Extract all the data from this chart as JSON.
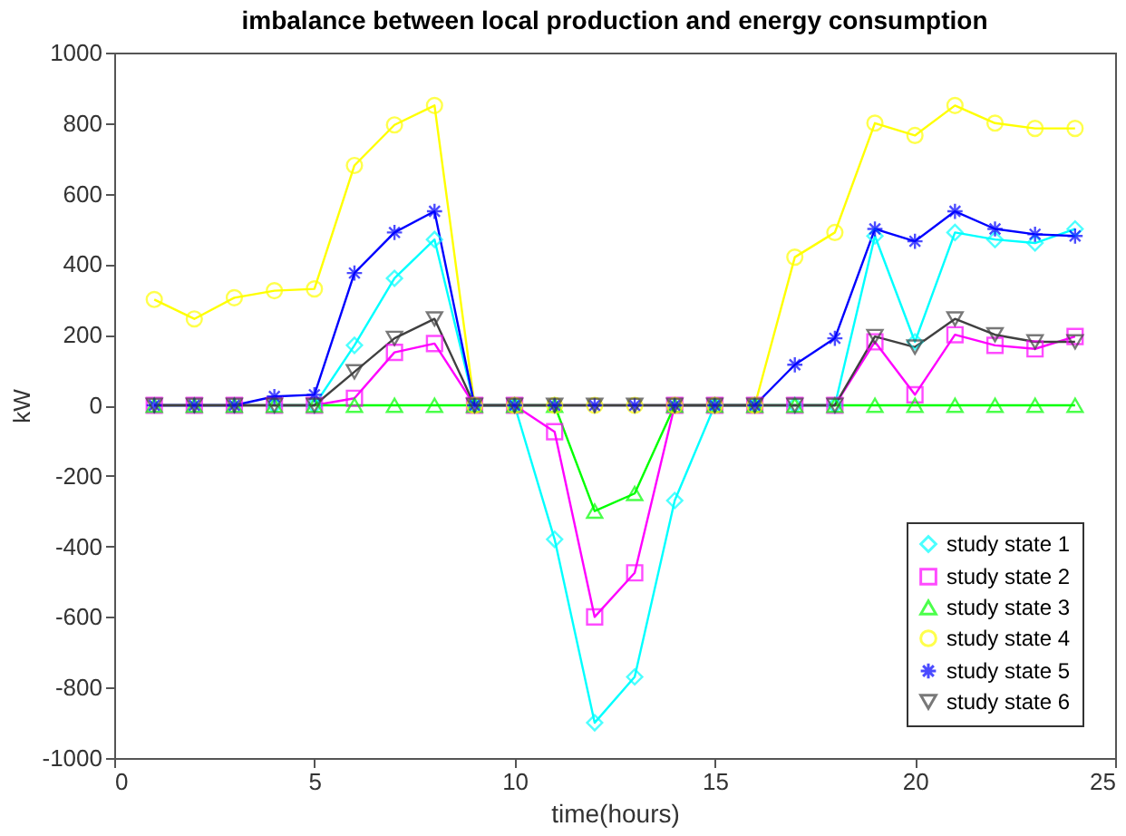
{
  "chart_data": {
    "type": "line",
    "title": "imbalance between local production and energy consumption",
    "xlabel": "time(hours)",
    "ylabel": "kW",
    "x": [
      1,
      2,
      3,
      4,
      5,
      6,
      7,
      8,
      9,
      10,
      11,
      12,
      13,
      14,
      15,
      16,
      17,
      18,
      19,
      20,
      21,
      22,
      23,
      24
    ],
    "xlim": [
      0,
      25
    ],
    "xticks": [
      0,
      5,
      10,
      15,
      20,
      25
    ],
    "ylim": [
      -1000,
      1000
    ],
    "yticks": [
      -1000,
      -800,
      -600,
      -400,
      -200,
      0,
      200,
      400,
      600,
      800,
      1000
    ],
    "grid": false,
    "legend": "bottom right",
    "line_style": "solid",
    "series": [
      {
        "name": "study state 1",
        "color": "#00ffff",
        "marker": "diamond",
        "values": [
          null,
          null,
          null,
          0,
          0,
          170,
          360,
          470,
          0,
          0,
          -380,
          -900,
          -770,
          -270,
          0,
          0,
          0,
          0,
          480,
          180,
          490,
          470,
          460,
          500
        ]
      },
      {
        "name": "study state 2",
        "color": "#ff00ff",
        "marker": "square",
        "values": [
          0,
          0,
          0,
          0,
          0,
          20,
          150,
          175,
          0,
          0,
          -75,
          -600,
          -475,
          0,
          0,
          0,
          0,
          0,
          180,
          30,
          200,
          170,
          160,
          195
        ]
      },
      {
        "name": "study state 3",
        "color": "#00ff00",
        "marker": "triangle",
        "values": [
          0,
          0,
          0,
          0,
          0,
          0,
          0,
          0,
          0,
          0,
          0,
          -300,
          -250,
          0,
          0,
          0,
          0,
          0,
          0,
          0,
          0,
          0,
          0,
          0
        ]
      },
      {
        "name": "study state 4",
        "color": "#ffff00",
        "marker": "circle",
        "values": [
          300,
          245,
          305,
          325,
          330,
          680,
          795,
          850,
          0,
          0,
          0,
          0,
          0,
          0,
          0,
          0,
          420,
          490,
          800,
          765,
          850,
          800,
          785,
          785
        ]
      },
      {
        "name": "study state 5",
        "color": "#0000ff",
        "marker": "cross",
        "values": [
          0,
          0,
          0,
          25,
          30,
          375,
          490,
          550,
          0,
          0,
          0,
          0,
          0,
          0,
          0,
          0,
          115,
          190,
          500,
          465,
          550,
          500,
          485,
          480
        ]
      },
      {
        "name": "study state 6",
        "color": "#404040",
        "marker": "triangle-down",
        "values": [
          0,
          0,
          0,
          0,
          0,
          95,
          190,
          245,
          0,
          0,
          0,
          0,
          0,
          0,
          0,
          0,
          0,
          0,
          195,
          165,
          245,
          200,
          180,
          180
        ]
      }
    ]
  }
}
